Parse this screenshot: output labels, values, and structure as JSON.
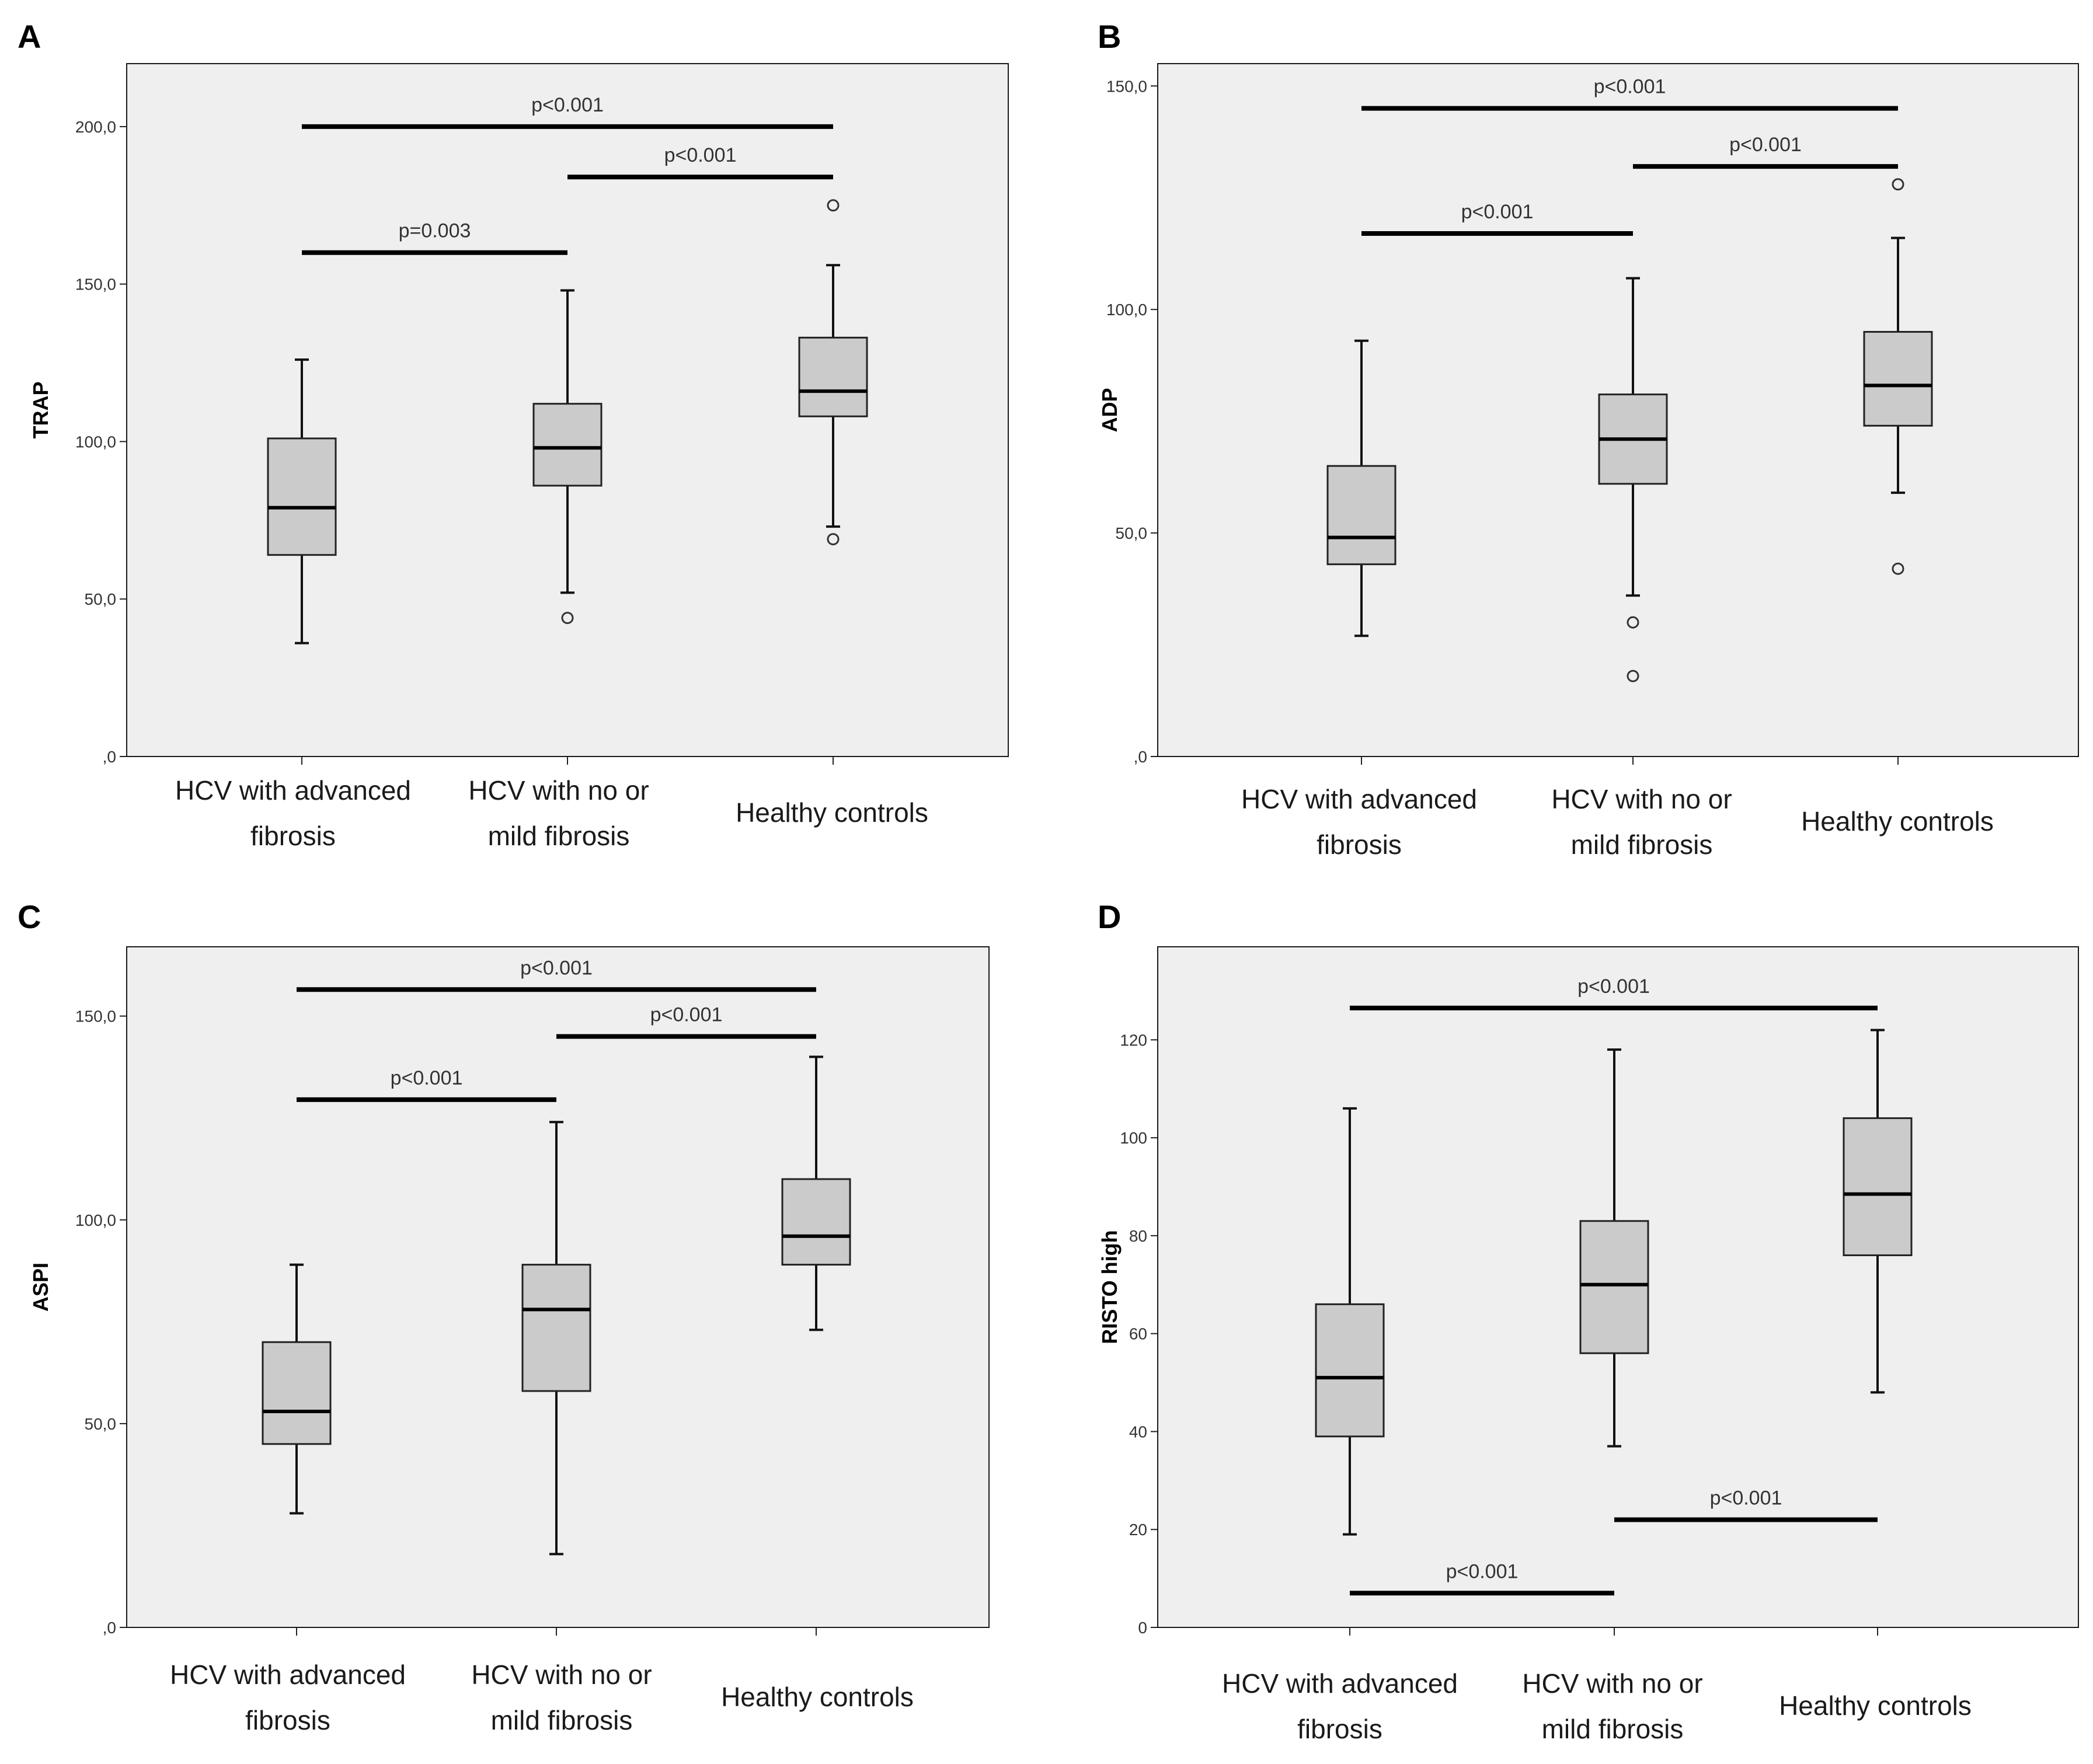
{
  "chart_data": [
    {
      "panel_label": "A",
      "type": "boxplot",
      "ylabel": "TRAP",
      "ylim": [
        0,
        220
      ],
      "yticks": [
        0,
        50,
        100,
        150,
        200
      ],
      "ytick_labels": [
        ",0",
        "50,0",
        "100,0",
        "150,0",
        "200,0"
      ],
      "categories": [
        "HCV with advanced fibrosis",
        "HCV with no or mild fibrosis",
        "Healthy controls"
      ],
      "category_lines": [
        [
          "HCV with advanced",
          "fibrosis"
        ],
        [
          "HCV with no or",
          "mild fibrosis"
        ],
        [
          "Healthy controls"
        ]
      ],
      "boxes": [
        {
          "whisker_low": 36,
          "q1": 64,
          "median": 79,
          "q3": 101,
          "whisker_high": 126,
          "outliers": []
        },
        {
          "whisker_low": 52,
          "q1": 86,
          "median": 98,
          "q3": 112,
          "whisker_high": 148,
          "outliers": [
            44
          ]
        },
        {
          "whisker_low": 73,
          "q1": 108,
          "median": 116,
          "q3": 133,
          "whisker_high": 156,
          "outliers": [
            69,
            175
          ]
        }
      ],
      "comparisons": [
        {
          "from": 0,
          "to": 2,
          "y": 200,
          "label": "p<0.001"
        },
        {
          "from": 1,
          "to": 2,
          "y": 184,
          "label": "p<0.001"
        },
        {
          "from": 0,
          "to": 1,
          "y": 160,
          "label": "p=0.003"
        }
      ],
      "grid": false,
      "background": "#efefef"
    },
    {
      "panel_label": "B",
      "type": "boxplot",
      "ylabel": "ADP",
      "ylim": [
        0,
        155
      ],
      "yticks": [
        0,
        50,
        100,
        150
      ],
      "ytick_labels": [
        ",0",
        "50,0",
        "100,0",
        "150,0"
      ],
      "categories": [
        "HCV with advanced fibrosis",
        "HCV with no or mild fibrosis",
        "Healthy controls"
      ],
      "category_lines": [
        [
          "HCV with advanced",
          "fibrosis"
        ],
        [
          "HCV with no or",
          "mild fibrosis"
        ],
        [
          "Healthy controls"
        ]
      ],
      "boxes": [
        {
          "whisker_low": 27,
          "q1": 43,
          "median": 49,
          "q3": 65,
          "whisker_high": 93,
          "outliers": []
        },
        {
          "whisker_low": 36,
          "q1": 61,
          "median": 71,
          "q3": 81,
          "whisker_high": 107,
          "outliers": [
            18,
            30
          ]
        },
        {
          "whisker_low": 59,
          "q1": 74,
          "median": 83,
          "q3": 95,
          "whisker_high": 116,
          "outliers": [
            42,
            128
          ]
        }
      ],
      "comparisons": [
        {
          "from": 0,
          "to": 2,
          "y": 145,
          "label": "p<0.001"
        },
        {
          "from": 1,
          "to": 2,
          "y": 132,
          "label": "p<0.001"
        },
        {
          "from": 0,
          "to": 1,
          "y": 117,
          "label": "p<0.001"
        }
      ],
      "grid": false,
      "background": "#efefef"
    },
    {
      "panel_label": "C",
      "type": "boxplot",
      "ylabel": "ASPI",
      "ylim": [
        0,
        167
      ],
      "yticks": [
        0,
        50,
        100,
        150
      ],
      "ytick_labels": [
        ",0",
        "50,0",
        "100,0",
        "150,0"
      ],
      "categories": [
        "HCV with advanced fibrosis",
        "HCV with no or mild fibrosis",
        "Healthy controls"
      ],
      "category_lines": [
        [
          "HCV with advanced",
          "fibrosis"
        ],
        [
          "HCV with no or",
          "mild fibrosis"
        ],
        [
          "Healthy controls"
        ]
      ],
      "boxes": [
        {
          "whisker_low": 28,
          "q1": 45,
          "median": 53,
          "q3": 70,
          "whisker_high": 89,
          "outliers": []
        },
        {
          "whisker_low": 18,
          "q1": 58,
          "median": 78,
          "q3": 89,
          "whisker_high": 124,
          "outliers": []
        },
        {
          "whisker_low": 73,
          "q1": 89,
          "median": 96,
          "q3": 110,
          "whisker_high": 140,
          "outliers": []
        }
      ],
      "comparisons": [
        {
          "from": 0,
          "to": 2,
          "y": 156.5,
          "label": "p<0.001"
        },
        {
          "from": 1,
          "to": 2,
          "y": 145,
          "label": "p<0.001"
        },
        {
          "from": 0,
          "to": 1,
          "y": 129.5,
          "label": "p<0.001"
        }
      ],
      "grid": false,
      "background": "#efefef"
    },
    {
      "panel_label": "D",
      "type": "boxplot",
      "ylabel": "RISTO high",
      "ylim": [
        0,
        139
      ],
      "yticks": [
        0,
        20,
        40,
        60,
        80,
        100,
        120
      ],
      "ytick_labels": [
        "0",
        "20",
        "40",
        "60",
        "80",
        "100",
        "120"
      ],
      "categories": [
        "HCV with advanced fibrosis",
        "HCV with no or mild fibrosis",
        "Healthy controls"
      ],
      "category_lines": [
        [
          "HCV with advanced",
          "fibrosis"
        ],
        [
          "HCV with no or",
          "mild fibrosis"
        ],
        [
          "Healthy controls"
        ]
      ],
      "boxes": [
        {
          "whisker_low": 19,
          "q1": 39,
          "median": 51,
          "q3": 66,
          "whisker_high": 106,
          "outliers": []
        },
        {
          "whisker_low": 37,
          "q1": 56,
          "median": 70,
          "q3": 83,
          "whisker_high": 118,
          "outliers": []
        },
        {
          "whisker_low": 48,
          "q1": 76,
          "median": 88.5,
          "q3": 104,
          "whisker_high": 122,
          "outliers": []
        }
      ],
      "comparisons": [
        {
          "from": 0,
          "to": 2,
          "y": 126.5,
          "label": "p<0.001"
        },
        {
          "from": 1,
          "to": 2,
          "y": 22,
          "label": "p<0.001"
        },
        {
          "from": 0,
          "to": 1,
          "y": 7,
          "label": "p<0.001"
        }
      ],
      "grid": false,
      "background": "#efefef"
    }
  ]
}
